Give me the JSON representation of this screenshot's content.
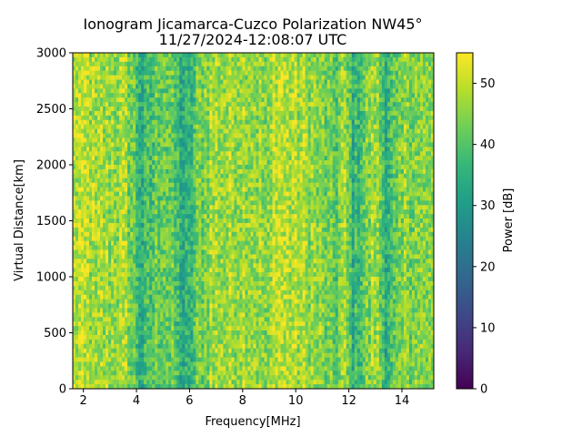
{
  "chart_data": {
    "type": "heatmap",
    "title": "Ionogram Jicamarca-Cuzco Polarization NW45°",
    "subtitle": "11/27/2024-12:08:07 UTC",
    "xlabel": "Frequency[MHz]",
    "ylabel": "Virtual Distance[km]",
    "xlim": [
      1.6,
      15.2
    ],
    "ylim": [
      0,
      3000
    ],
    "xticks": [
      2,
      4,
      6,
      8,
      10,
      12,
      14
    ],
    "xtick_labels": [
      "2",
      "4",
      "6",
      "8",
      "10",
      "12",
      "14"
    ],
    "yticks": [
      0,
      500,
      1000,
      1500,
      2000,
      2500,
      3000
    ],
    "ytick_labels": [
      "0",
      "500",
      "1000",
      "1500",
      "2000",
      "2500",
      "3000"
    ],
    "colorbar": {
      "label": "Power [dB]",
      "range": [
        0,
        55
      ],
      "ticks": [
        0,
        10,
        20,
        30,
        40,
        50
      ],
      "tick_labels": [
        "0",
        "10",
        "20",
        "30",
        "40",
        "50"
      ],
      "colormap": "viridis",
      "stops": [
        "#440154",
        "#482878",
        "#3e4989",
        "#31688e",
        "#26828e",
        "#1f9e89",
        "#35b779",
        "#6ece58",
        "#b5de2b",
        "#fde725"
      ]
    },
    "frequency_profile_mhz": [
      1.6,
      2.0,
      2.5,
      3.0,
      3.5,
      3.8,
      4.2,
      4.5,
      5.0,
      5.4,
      5.8,
      6.0,
      6.3,
      6.8,
      7.5,
      8.0,
      8.5,
      9.0,
      9.2,
      9.5,
      10.0,
      10.5,
      11.0,
      11.5,
      11.8,
      12.2,
      12.6,
      13.0,
      13.4,
      13.8,
      14.2,
      14.6,
      15.2
    ],
    "frequency_profile_power_db": [
      48,
      49,
      46,
      47,
      47,
      44,
      34,
      38,
      44,
      40,
      33,
      34,
      42,
      47,
      47,
      48,
      47,
      43,
      51,
      49,
      48,
      47,
      44,
      40,
      47,
      35,
      42,
      48,
      36,
      40,
      46,
      44,
      44
    ]
  }
}
